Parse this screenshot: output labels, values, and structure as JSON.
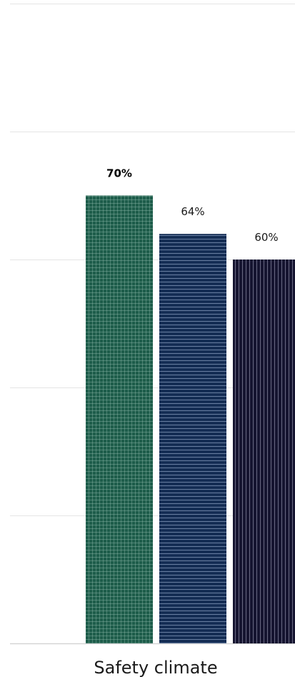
{
  "chart_data": {
    "type": "bar",
    "categories": [
      "Safety climate"
    ],
    "series": [
      {
        "values": [
          70
        ],
        "label": "70%",
        "color": "#1d5c4a",
        "pattern": "grid",
        "emphasis": true
      },
      {
        "values": [
          64
        ],
        "label": "64%",
        "color": "#142d54",
        "pattern": "horizontal-lines",
        "emphasis": false
      },
      {
        "values": [
          60
        ],
        "label": "60%",
        "color": "#151430",
        "pattern": "vertical-lines",
        "emphasis": false
      }
    ],
    "ylim": [
      0,
      100
    ],
    "grid": true
  }
}
